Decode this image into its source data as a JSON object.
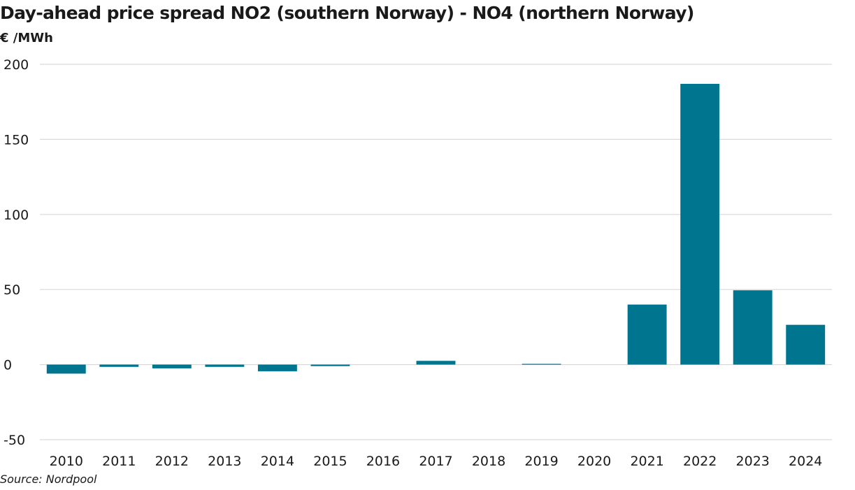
{
  "header": {
    "title": "Day-ahead price spread NO2 (southern Norway) - NO4 (northern Norway)",
    "unit": "€ /MWh"
  },
  "footer": {
    "source": "Source: Nordpool"
  },
  "colors": {
    "bar": "#00758f",
    "grid": "#d9d9d9",
    "zero_line": "#d9d9d9",
    "text": "#1a1a1a"
  },
  "chart_data": {
    "type": "bar",
    "title": "Day-ahead price spread NO2 (southern Norway) - NO4 (northern Norway)",
    "ylabel": "€ /MWh",
    "xlabel": "",
    "categories": [
      "2010",
      "2011",
      "2012",
      "2013",
      "2014",
      "2015",
      "2016",
      "2017",
      "2018",
      "2019",
      "2020",
      "2021",
      "2022",
      "2023",
      "2024"
    ],
    "values": [
      -6,
      -1.5,
      -2.5,
      -1.5,
      -4.5,
      -1,
      0,
      2.5,
      0,
      0.5,
      0,
      40,
      187,
      49.5,
      26.5
    ],
    "ylim": [
      -50,
      200
    ],
    "yticks": [
      200,
      150,
      100,
      50,
      0,
      -50
    ],
    "ytick_labels": [
      "200",
      "150",
      "100",
      "50",
      "0",
      "-50"
    ],
    "grid": true,
    "legend": "none"
  }
}
